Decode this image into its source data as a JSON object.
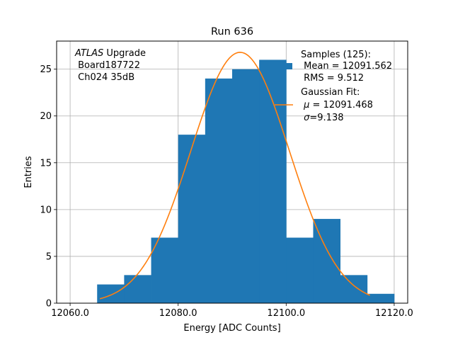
{
  "chart_data": {
    "type": "bar",
    "title": "Run 636",
    "xlabel": "Energy [ADC Counts]",
    "ylabel": "Entries",
    "xlim": [
      12057.5,
      12122.5
    ],
    "ylim": [
      0,
      28
    ],
    "grid": true,
    "x_ticks": [
      {
        "value": 12060,
        "label": "12060.0"
      },
      {
        "value": 12080,
        "label": "12080.0"
      },
      {
        "value": 12100,
        "label": "12100.0"
      },
      {
        "value": 12120,
        "label": "12120.0"
      }
    ],
    "y_ticks": [
      {
        "value": 0,
        "label": "0"
      },
      {
        "value": 5,
        "label": "5"
      },
      {
        "value": 10,
        "label": "10"
      },
      {
        "value": 15,
        "label": "15"
      },
      {
        "value": 20,
        "label": "20"
      },
      {
        "value": 25,
        "label": "25"
      }
    ],
    "bins": [
      {
        "x0": 12065,
        "x1": 12070,
        "count": 2
      },
      {
        "x0": 12070,
        "x1": 12075,
        "count": 3
      },
      {
        "x0": 12075,
        "x1": 12080,
        "count": 7
      },
      {
        "x0": 12080,
        "x1": 12085,
        "count": 18
      },
      {
        "x0": 12085,
        "x1": 12090,
        "count": 24
      },
      {
        "x0": 12090,
        "x1": 12095,
        "count": 25
      },
      {
        "x0": 12095,
        "x1": 12100,
        "count": 26
      },
      {
        "x0": 12100,
        "x1": 12105,
        "count": 7
      },
      {
        "x0": 12105,
        "x1": 12110,
        "count": 9
      },
      {
        "x0": 12110,
        "x1": 12115,
        "count": 3
      },
      {
        "x0": 12115,
        "x1": 12120,
        "count": 1
      }
    ],
    "fit": {
      "type": "gaussian",
      "mu": 12091.468,
      "sigma": 9.138,
      "amplitude": 26.8,
      "x_range": [
        12065.5,
        12115.5
      ]
    },
    "colors": {
      "bars": "#1f77b4",
      "fit": "#ff7f0e",
      "grid": "#b0b0b0"
    },
    "annotation": {
      "atlas": "ATLAS",
      "line1_rest": " Upgrade",
      "line2": " Board187722",
      "line3": " Ch024 35dB"
    },
    "legend": {
      "placement": "top-right",
      "samples_title": "Samples (125):",
      "samples_mean": " Mean = 12091.562",
      "samples_rms": " RMS = 9.512",
      "fit_title": "Gaussian Fit:",
      "fit_mu_symbol": "μ",
      "fit_mu_rest": " = 12091.468",
      "fit_sigma_symbol": "σ",
      "fit_sigma_rest": "=9.138"
    }
  }
}
